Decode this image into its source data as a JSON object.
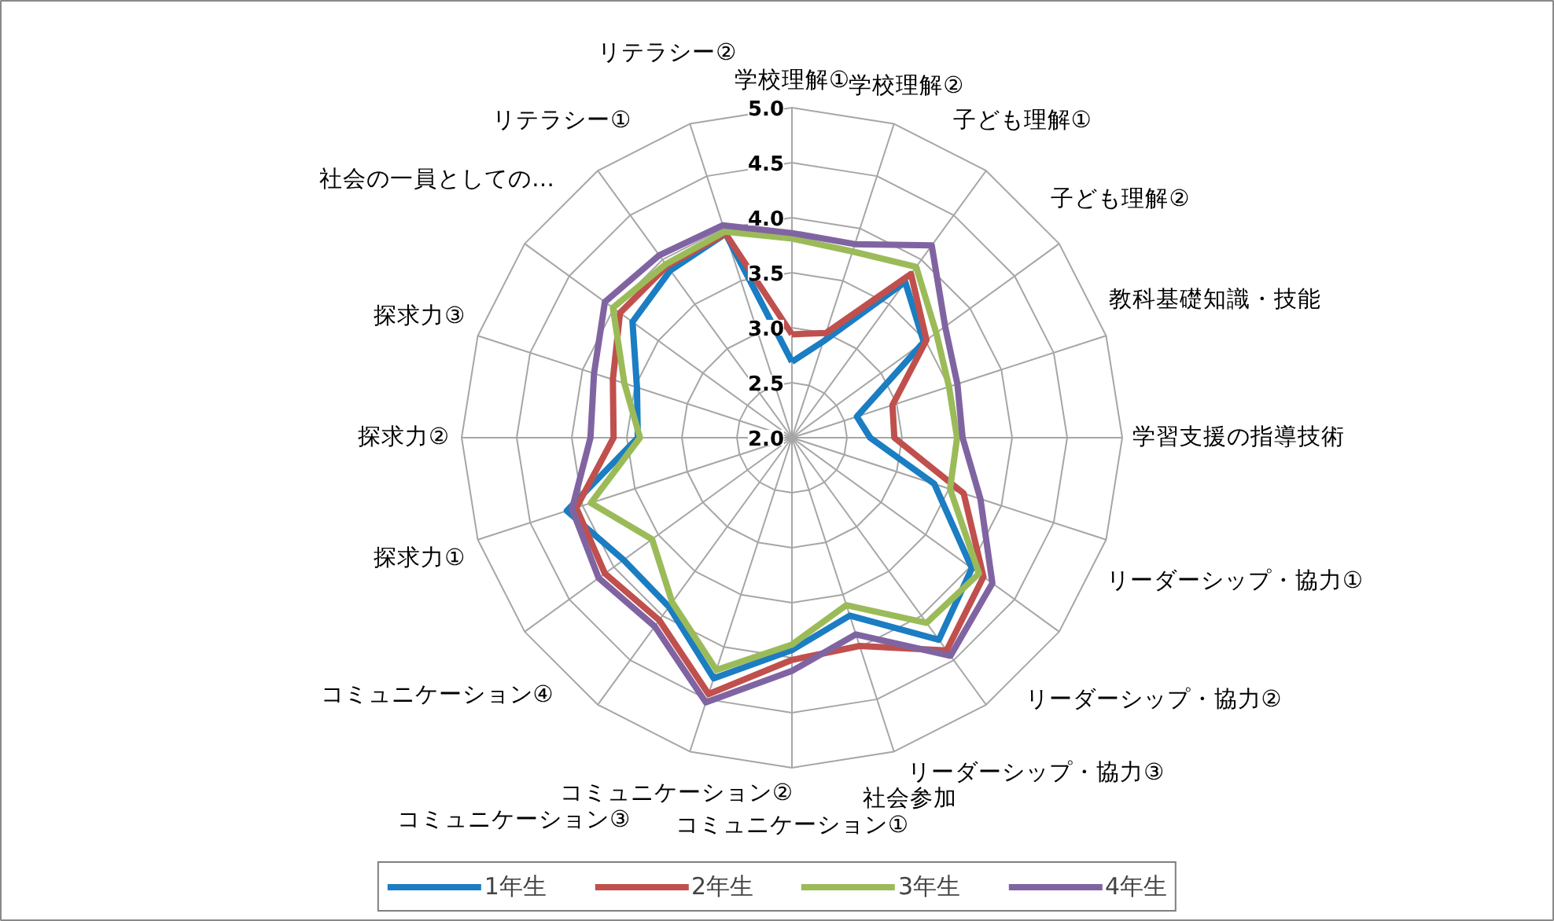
{
  "chart_data": {
    "type": "radar",
    "categories": [
      "学校理解①",
      "学校理解②",
      "子ども理解①",
      "子ども理解②",
      "教科基礎知識・技能",
      "学習支援の指導技術",
      "リーダーシップ・協力①",
      "リーダーシップ・協力②",
      "リーダーシップ・協力③",
      "社会参加",
      "コミュニケーション①",
      "コミュニケーション②",
      "コミュニケーション③",
      "コミュニケーション④",
      "探求力①",
      "探求力②",
      "探求力③",
      "社会の一員としての…",
      "リテラシー①",
      "リテラシー②"
    ],
    "series": [
      {
        "name": "1年生",
        "color": "#1b7dc2",
        "values": [
          2.69,
          2.92,
          3.75,
          3.48,
          2.62,
          2.71,
          3.36,
          4.02,
          4.27,
          3.7,
          3.93,
          4.3,
          3.9,
          3.89,
          4.15,
          3.4,
          3.48,
          3.79,
          3.88,
          3.95
        ]
      },
      {
        "name": "2年生",
        "color": "#c0504d",
        "values": [
          2.94,
          3.0,
          3.84,
          3.51,
          2.96,
          2.93,
          3.64,
          4.15,
          4.39,
          3.99,
          4.02,
          4.45,
          4.05,
          4.1,
          4.06,
          3.62,
          3.71,
          3.93,
          3.93,
          3.95
        ]
      },
      {
        "name": "3年生",
        "color": "#9bbb59",
        "values": [
          3.81,
          3.78,
          3.92,
          3.62,
          3.5,
          3.5,
          3.51,
          4.1,
          4.08,
          3.6,
          3.88,
          4.22,
          3.85,
          3.57,
          3.92,
          3.38,
          3.6,
          4.01,
          3.95,
          3.97
        ]
      },
      {
        "name": "4年生",
        "color": "#8064a2",
        "values": [
          3.86,
          3.85,
          4.16,
          3.72,
          3.58,
          3.55,
          3.8,
          4.25,
          4.45,
          3.88,
          4.12,
          4.53,
          4.12,
          4.17,
          4.1,
          3.83,
          3.89,
          4.1,
          4.05,
          4.03
        ]
      }
    ],
    "ylim": [
      2.0,
      5.0
    ],
    "yticks": [
      {
        "value": 2.0,
        "label": "2.0"
      },
      {
        "value": 2.5,
        "label": "2.5"
      },
      {
        "value": 3.0,
        "label": "3.0"
      },
      {
        "value": 3.5,
        "label": "3.5"
      },
      {
        "value": 4.0,
        "label": "4.0"
      },
      {
        "value": 4.5,
        "label": "4.5"
      },
      {
        "value": 5.0,
        "label": "5.0"
      }
    ],
    "grid": true,
    "legend": "bottom",
    "marker": "none",
    "line_style": "solid"
  }
}
